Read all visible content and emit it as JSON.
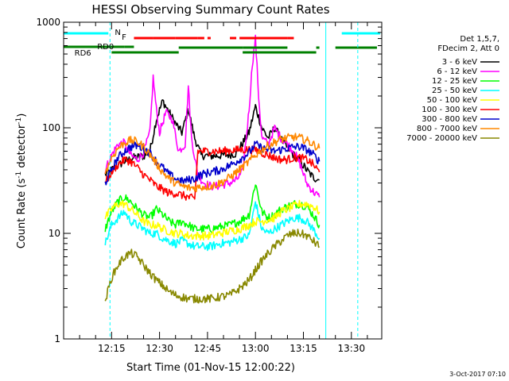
{
  "chart_data": {
    "type": "line",
    "title": "HESSI Observing Summary Count Rates",
    "xlabel": "Start Time (01-Nov-15 12:00:22)",
    "ylabel_main": "Count Rate (s",
    "ylabel_exp1": "-1",
    "ylabel_mid": " detector",
    "ylabel_exp2": "-1",
    "ylabel_end": ")",
    "yscale": "log",
    "ylim": [
      1,
      1000
    ],
    "xlim_minutes": [
      0,
      99.5
    ],
    "xtick_labels": [
      {
        "m": 15,
        "label": "12:15"
      },
      {
        "m": 30,
        "label": "12:30"
      },
      {
        "m": 45,
        "label": "12:45"
      },
      {
        "m": 60,
        "label": "13:00"
      },
      {
        "m": 75,
        "label": "13:15"
      },
      {
        "m": 90,
        "label": "13:30"
      }
    ],
    "ytick_labels": [
      {
        "v": 1,
        "label": "1"
      },
      {
        "v": 10,
        "label": "10"
      },
      {
        "v": 100,
        "label": "100"
      },
      {
        "v": 1000,
        "label": "1000"
      }
    ],
    "legend_header": [
      "Det 1,5,7,",
      "FDecim 2, Att 0"
    ],
    "series": [
      {
        "name": "3 - 6 keV",
        "color": "#000000",
        "points": [
          [
            13,
            36
          ],
          [
            16,
            42
          ],
          [
            19,
            48
          ],
          [
            22,
            52
          ],
          [
            25,
            54
          ],
          [
            27,
            60
          ],
          [
            29,
            120
          ],
          [
            31,
            180
          ],
          [
            33,
            140
          ],
          [
            35,
            110
          ],
          [
            37,
            90
          ],
          [
            39,
            150
          ],
          [
            41,
            80
          ],
          [
            43,
            55
          ],
          [
            46,
            54
          ],
          [
            50,
            55
          ],
          [
            54,
            57
          ],
          [
            58,
            90
          ],
          [
            60,
            160
          ],
          [
            62,
            100
          ],
          [
            64,
            80
          ],
          [
            66,
            100
          ],
          [
            69,
            70
          ],
          [
            72,
            55
          ],
          [
            74,
            48
          ],
          [
            76,
            40
          ],
          [
            78,
            34
          ],
          [
            80,
            32
          ]
        ]
      },
      {
        "name": "6 - 12 keV",
        "color": "#ff00ff",
        "points": [
          [
            13,
            40
          ],
          [
            15,
            55
          ],
          [
            17,
            70
          ],
          [
            19,
            72
          ],
          [
            21,
            55
          ],
          [
            23,
            50
          ],
          [
            25,
            58
          ],
          [
            27,
            90
          ],
          [
            28,
            300
          ],
          [
            29,
            150
          ],
          [
            30,
            90
          ],
          [
            32,
            140
          ],
          [
            34,
            120
          ],
          [
            36,
            60
          ],
          [
            38,
            70
          ],
          [
            39,
            250
          ],
          [
            40,
            80
          ],
          [
            42,
            35
          ],
          [
            44,
            30
          ],
          [
            46,
            28
          ],
          [
            48,
            28
          ],
          [
            50,
            29
          ],
          [
            52,
            30
          ],
          [
            54,
            32
          ],
          [
            56,
            38
          ],
          [
            58,
            150
          ],
          [
            59,
            400
          ],
          [
            60,
            700
          ],
          [
            61,
            200
          ],
          [
            62,
            80
          ],
          [
            64,
            70
          ],
          [
            66,
            100
          ],
          [
            68,
            80
          ],
          [
            70,
            70
          ],
          [
            72,
            60
          ],
          [
            74,
            45
          ],
          [
            76,
            30
          ],
          [
            78,
            25
          ],
          [
            80,
            22
          ]
        ]
      },
      {
        "name": "12 - 25 keV",
        "color": "#00ff00",
        "points": [
          [
            13,
            11
          ],
          [
            15,
            16
          ],
          [
            17,
            20
          ],
          [
            19,
            22
          ],
          [
            21,
            20
          ],
          [
            23,
            17
          ],
          [
            25,
            15
          ],
          [
            27,
            14
          ],
          [
            29,
            17
          ],
          [
            31,
            15
          ],
          [
            33,
            13
          ],
          [
            35,
            12
          ],
          [
            37,
            13
          ],
          [
            39,
            12
          ],
          [
            41,
            11
          ],
          [
            43,
            11
          ],
          [
            46,
            11
          ],
          [
            49,
            11.5
          ],
          [
            52,
            12
          ],
          [
            55,
            13
          ],
          [
            58,
            15
          ],
          [
            60,
            30
          ],
          [
            62,
            16
          ],
          [
            64,
            14
          ],
          [
            66,
            15
          ],
          [
            68,
            17
          ],
          [
            70,
            18
          ],
          [
            72,
            19
          ],
          [
            74,
            19
          ],
          [
            76,
            18
          ],
          [
            78,
            15
          ],
          [
            80,
            12
          ]
        ]
      },
      {
        "name": "25 - 50 keV",
        "color": "#00ffff",
        "points": [
          [
            13,
            8
          ],
          [
            15,
            12
          ],
          [
            17,
            14
          ],
          [
            19,
            16
          ],
          [
            21,
            13
          ],
          [
            23,
            12
          ],
          [
            25,
            11
          ],
          [
            27,
            10
          ],
          [
            29,
            10
          ],
          [
            31,
            9
          ],
          [
            33,
            8.5
          ],
          [
            35,
            8
          ],
          [
            37,
            8.5
          ],
          [
            39,
            8
          ],
          [
            41,
            7.5
          ],
          [
            43,
            7.5
          ],
          [
            46,
            7.5
          ],
          [
            49,
            8
          ],
          [
            52,
            8.2
          ],
          [
            55,
            8.8
          ],
          [
            58,
            9.5
          ],
          [
            60,
            20
          ],
          [
            62,
            11
          ],
          [
            64,
            10
          ],
          [
            66,
            11
          ],
          [
            68,
            12
          ],
          [
            70,
            13
          ],
          [
            72,
            14
          ],
          [
            74,
            14
          ],
          [
            76,
            13
          ],
          [
            78,
            11
          ],
          [
            80,
            9
          ]
        ]
      },
      {
        "name": "50 - 100 keV",
        "color": "#ffff00",
        "points": [
          [
            13,
            14
          ],
          [
            15,
            17
          ],
          [
            17,
            19
          ],
          [
            19,
            19
          ],
          [
            21,
            17
          ],
          [
            23,
            15
          ],
          [
            25,
            13
          ],
          [
            27,
            12
          ],
          [
            29,
            12
          ],
          [
            31,
            11
          ],
          [
            33,
            10.5
          ],
          [
            35,
            10
          ],
          [
            37,
            10
          ],
          [
            39,
            9.5
          ],
          [
            41,
            9.5
          ],
          [
            43,
            9.5
          ],
          [
            46,
            9.5
          ],
          [
            49,
            10
          ],
          [
            52,
            10.5
          ],
          [
            55,
            11
          ],
          [
            58,
            12
          ],
          [
            60,
            13
          ],
          [
            62,
            13
          ],
          [
            64,
            13.5
          ],
          [
            66,
            14
          ],
          [
            68,
            16
          ],
          [
            70,
            17
          ],
          [
            72,
            18
          ],
          [
            74,
            19
          ],
          [
            76,
            19
          ],
          [
            78,
            18
          ],
          [
            80,
            16
          ]
        ]
      },
      {
        "name": "100 - 300 keV",
        "color": "#ff0000",
        "points": [
          [
            13,
            30
          ],
          [
            15,
            38
          ],
          [
            17,
            45
          ],
          [
            19,
            50
          ],
          [
            21,
            48
          ],
          [
            23,
            42
          ],
          [
            25,
            36
          ],
          [
            27,
            32
          ],
          [
            29,
            28
          ],
          [
            31,
            26
          ],
          [
            33,
            24
          ],
          [
            35,
            24
          ],
          [
            37,
            23
          ],
          [
            39,
            22
          ],
          [
            41,
            21
          ],
          [
            42,
            60
          ],
          [
            44,
            60
          ],
          [
            46,
            60
          ],
          [
            49,
            60
          ],
          [
            52,
            61
          ],
          [
            55,
            62
          ],
          [
            58,
            62
          ],
          [
            60,
            62
          ],
          [
            62,
            58
          ],
          [
            64,
            55
          ],
          [
            66,
            52
          ],
          [
            68,
            50
          ],
          [
            70,
            50
          ],
          [
            72,
            52
          ],
          [
            74,
            52
          ],
          [
            76,
            50
          ],
          [
            78,
            45
          ],
          [
            80,
            38
          ]
        ]
      },
      {
        "name": "300 - 800 keV",
        "color": "#0000cc",
        "points": [
          [
            13,
            30
          ],
          [
            15,
            40
          ],
          [
            17,
            52
          ],
          [
            19,
            60
          ],
          [
            21,
            66
          ],
          [
            23,
            68
          ],
          [
            25,
            64
          ],
          [
            27,
            58
          ],
          [
            29,
            48
          ],
          [
            31,
            42
          ],
          [
            33,
            36
          ],
          [
            35,
            33
          ],
          [
            37,
            31
          ],
          [
            39,
            32
          ],
          [
            41,
            33
          ],
          [
            43,
            36
          ],
          [
            46,
            38
          ],
          [
            49,
            40
          ],
          [
            52,
            44
          ],
          [
            55,
            50
          ],
          [
            58,
            58
          ],
          [
            60,
            70
          ],
          [
            62,
            64
          ],
          [
            64,
            62
          ],
          [
            66,
            60
          ],
          [
            68,
            62
          ],
          [
            70,
            64
          ],
          [
            72,
            66
          ],
          [
            74,
            66
          ],
          [
            76,
            62
          ],
          [
            78,
            56
          ],
          [
            80,
            48
          ]
        ]
      },
      {
        "name": "800 - 7000 keV",
        "color": "#ff8800",
        "points": [
          [
            13,
            38
          ],
          [
            15,
            52
          ],
          [
            17,
            64
          ],
          [
            19,
            72
          ],
          [
            21,
            76
          ],
          [
            23,
            74
          ],
          [
            25,
            66
          ],
          [
            27,
            56
          ],
          [
            29,
            46
          ],
          [
            31,
            38
          ],
          [
            33,
            33
          ],
          [
            35,
            30
          ],
          [
            37,
            28
          ],
          [
            39,
            27
          ],
          [
            41,
            27
          ],
          [
            43,
            27.5
          ],
          [
            46,
            28
          ],
          [
            49,
            30
          ],
          [
            52,
            34
          ],
          [
            55,
            40
          ],
          [
            58,
            48
          ],
          [
            60,
            55
          ],
          [
            62,
            62
          ],
          [
            64,
            68
          ],
          [
            66,
            73
          ],
          [
            68,
            78
          ],
          [
            70,
            80
          ],
          [
            72,
            82
          ],
          [
            74,
            80
          ],
          [
            76,
            76
          ],
          [
            78,
            70
          ],
          [
            80,
            64
          ]
        ]
      },
      {
        "name": "7000 - 20000 keV",
        "color": "#888800",
        "points": [
          [
            13,
            2.3
          ],
          [
            15,
            3.8
          ],
          [
            17,
            5
          ],
          [
            19,
            6
          ],
          [
            21,
            6.5
          ],
          [
            23,
            6
          ],
          [
            25,
            5
          ],
          [
            27,
            4.2
          ],
          [
            29,
            3.6
          ],
          [
            31,
            3.2
          ],
          [
            33,
            2.8
          ],
          [
            35,
            2.6
          ],
          [
            37,
            2.5
          ],
          [
            39,
            2.4
          ],
          [
            41,
            2.4
          ],
          [
            43,
            2.4
          ],
          [
            46,
            2.4
          ],
          [
            49,
            2.5
          ],
          [
            52,
            2.6
          ],
          [
            55,
            3
          ],
          [
            58,
            3.6
          ],
          [
            60,
            4.5
          ],
          [
            62,
            5.5
          ],
          [
            64,
            6.5
          ],
          [
            66,
            7.5
          ],
          [
            68,
            8.5
          ],
          [
            70,
            9.5
          ],
          [
            72,
            10
          ],
          [
            74,
            10
          ],
          [
            76,
            9.5
          ],
          [
            78,
            8.5
          ],
          [
            80,
            7.5
          ]
        ]
      }
    ],
    "annotations": {
      "saa_label": "N",
      "flare_label": "F",
      "rd_labels": [
        "RD0",
        "RD6"
      ]
    }
  },
  "footer_date": "3-Oct-2017 07:10"
}
